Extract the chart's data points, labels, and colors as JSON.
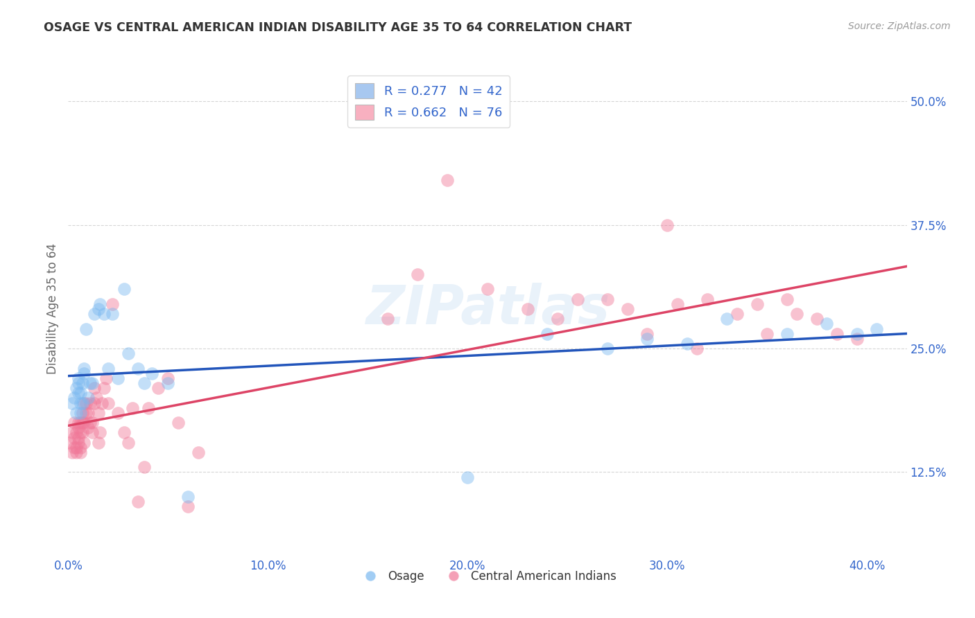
{
  "title": "OSAGE VS CENTRAL AMERICAN INDIAN DISABILITY AGE 35 TO 64 CORRELATION CHART",
  "source": "Source: ZipAtlas.com",
  "ylabel": "Disability Age 35 to 64",
  "xlabel_ticks": [
    "0.0%",
    "10.0%",
    "20.0%",
    "30.0%",
    "40.0%"
  ],
  "ylabel_ticks": [
    "12.5%",
    "25.0%",
    "37.5%",
    "50.0%"
  ],
  "xlim": [
    0.0,
    0.42
  ],
  "ylim": [
    0.04,
    0.54
  ],
  "legend_entries": [
    {
      "label": "R = 0.277   N = 42",
      "facecolor": "#a8c8f0"
    },
    {
      "label": "R = 0.662   N = 76",
      "facecolor": "#f8b0c0"
    }
  ],
  "legend_labels": [
    "Osage",
    "Central American Indians"
  ],
  "osage_color": "#7ab8f0",
  "central_color": "#f07898",
  "osage_line_color": "#2255bb",
  "central_line_color": "#dd4466",
  "watermark": "ZIPatlas",
  "background_color": "#ffffff",
  "grid_color": "#cccccc",
  "title_color": "#333333",
  "axis_label_color": "#666666",
  "tick_color": "#3366cc",
  "source_color": "#999999",
  "osage_x": [
    0.002,
    0.003,
    0.004,
    0.004,
    0.005,
    0.005,
    0.005,
    0.006,
    0.006,
    0.006,
    0.007,
    0.007,
    0.008,
    0.008,
    0.009,
    0.01,
    0.011,
    0.012,
    0.013,
    0.015,
    0.016,
    0.018,
    0.02,
    0.022,
    0.025,
    0.028,
    0.03,
    0.035,
    0.038,
    0.042,
    0.05,
    0.06,
    0.2,
    0.24,
    0.27,
    0.29,
    0.31,
    0.33,
    0.36,
    0.38,
    0.395,
    0.405
  ],
  "osage_y": [
    0.195,
    0.2,
    0.21,
    0.185,
    0.205,
    0.22,
    0.215,
    0.185,
    0.205,
    0.195,
    0.215,
    0.195,
    0.225,
    0.23,
    0.27,
    0.2,
    0.215,
    0.215,
    0.285,
    0.29,
    0.295,
    0.285,
    0.23,
    0.285,
    0.22,
    0.31,
    0.245,
    0.23,
    0.215,
    0.225,
    0.215,
    0.1,
    0.12,
    0.265,
    0.25,
    0.26,
    0.255,
    0.28,
    0.265,
    0.275,
    0.265,
    0.27
  ],
  "central_x": [
    0.001,
    0.002,
    0.002,
    0.003,
    0.003,
    0.003,
    0.004,
    0.004,
    0.004,
    0.005,
    0.005,
    0.005,
    0.005,
    0.006,
    0.006,
    0.006,
    0.006,
    0.007,
    0.007,
    0.007,
    0.008,
    0.008,
    0.008,
    0.009,
    0.009,
    0.01,
    0.01,
    0.011,
    0.011,
    0.012,
    0.012,
    0.013,
    0.013,
    0.014,
    0.015,
    0.015,
    0.016,
    0.017,
    0.018,
    0.019,
    0.02,
    0.022,
    0.025,
    0.028,
    0.03,
    0.032,
    0.035,
    0.038,
    0.04,
    0.045,
    0.05,
    0.055,
    0.06,
    0.065,
    0.16,
    0.175,
    0.19,
    0.21,
    0.23,
    0.245,
    0.255,
    0.27,
    0.28,
    0.29,
    0.3,
    0.305,
    0.315,
    0.32,
    0.335,
    0.345,
    0.35,
    0.36,
    0.365,
    0.375,
    0.385,
    0.395
  ],
  "central_y": [
    0.155,
    0.165,
    0.145,
    0.15,
    0.16,
    0.175,
    0.15,
    0.165,
    0.145,
    0.155,
    0.17,
    0.16,
    0.175,
    0.15,
    0.145,
    0.165,
    0.175,
    0.165,
    0.175,
    0.185,
    0.195,
    0.175,
    0.155,
    0.185,
    0.195,
    0.17,
    0.185,
    0.195,
    0.175,
    0.175,
    0.165,
    0.195,
    0.21,
    0.2,
    0.185,
    0.155,
    0.165,
    0.195,
    0.21,
    0.22,
    0.195,
    0.295,
    0.185,
    0.165,
    0.155,
    0.19,
    0.095,
    0.13,
    0.19,
    0.21,
    0.22,
    0.175,
    0.09,
    0.145,
    0.28,
    0.325,
    0.42,
    0.31,
    0.29,
    0.28,
    0.3,
    0.3,
    0.29,
    0.265,
    0.375,
    0.295,
    0.25,
    0.3,
    0.285,
    0.295,
    0.265,
    0.3,
    0.285,
    0.28,
    0.265,
    0.26
  ]
}
